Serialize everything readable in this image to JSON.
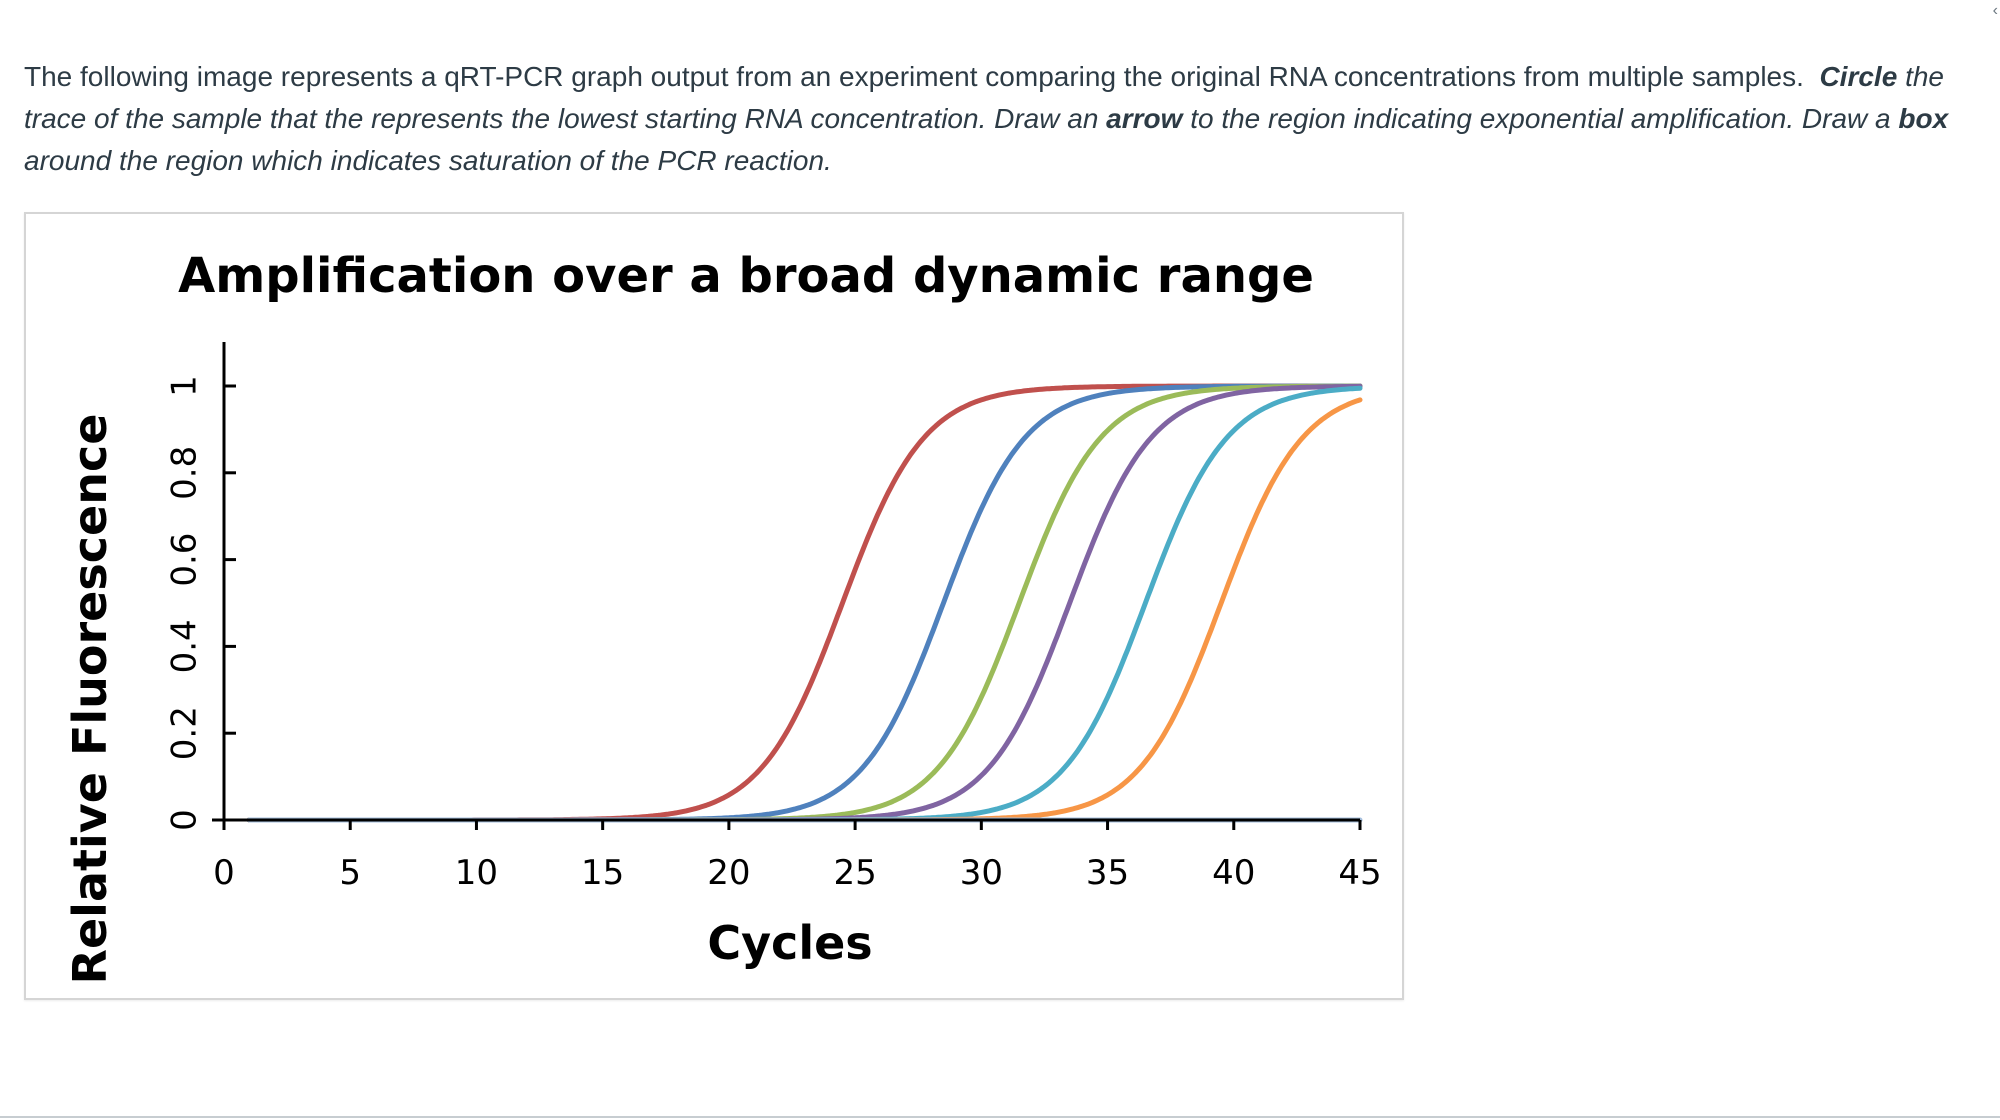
{
  "question": {
    "p1": "The following image represents a qRT-PCR graph output from an experiment comparing the original RNA concentrations from multiple samples.",
    "circle_word": "Circle",
    "p2": "the trace of the sample that the represents the lowest starting RNA concentration. Draw an",
    "arrow_word": "arrow",
    "p3": "to the region indicating exponential amplification.  Draw a",
    "box_word": "box",
    "p4": "around the region which indicates saturation of the PCR reaction."
  },
  "corner_icon": "chevron-left-icon",
  "chart_data": {
    "type": "line",
    "title": "Amplification over a broad dynamic range",
    "xlabel": "Cycles",
    "ylabel": "Relative Fluorescence",
    "xlim": [
      0,
      45
    ],
    "ylim": [
      0,
      1
    ],
    "x_ticks": [
      "0",
      "5",
      "10",
      "15",
      "20",
      "25",
      "30",
      "35",
      "40",
      "45"
    ],
    "y_ticks": [
      "0",
      "0.2",
      "0.4",
      "0.6",
      "0.8",
      "1"
    ],
    "grid": false,
    "legend": "none",
    "series": [
      {
        "color": "#c0504d",
        "midpoint_cycle": 24.5,
        "x": [
          1,
          18,
          20,
          22,
          23,
          24,
          25,
          26,
          27,
          28,
          30,
          35,
          45
        ],
        "y": [
          0,
          0.01,
          0.04,
          0.14,
          0.26,
          0.44,
          0.63,
          0.8,
          0.91,
          0.96,
          0.99,
          1,
          1
        ]
      },
      {
        "color": "#4f81bd",
        "midpoint_cycle": 28.5,
        "x": [
          1,
          22,
          24,
          26,
          27,
          28,
          29,
          30,
          31,
          32,
          34,
          38,
          45
        ],
        "y": [
          0,
          0.01,
          0.04,
          0.14,
          0.26,
          0.44,
          0.63,
          0.8,
          0.9,
          0.95,
          0.98,
          1,
          1
        ]
      },
      {
        "color": "#9bbb59",
        "midpoint_cycle": 31.5,
        "x": [
          1,
          25,
          27,
          29,
          30,
          31,
          32,
          33,
          34,
          35,
          37,
          41,
          45
        ],
        "y": [
          0,
          0.01,
          0.04,
          0.14,
          0.26,
          0.44,
          0.63,
          0.8,
          0.9,
          0.95,
          0.98,
          0.99,
          1
        ]
      },
      {
        "color": "#8064a2",
        "midpoint_cycle": 33.5,
        "x": [
          1,
          27,
          29,
          31,
          32,
          33,
          34,
          35,
          36,
          37,
          39,
          42,
          45
        ],
        "y": [
          0,
          0.01,
          0.04,
          0.14,
          0.26,
          0.44,
          0.63,
          0.8,
          0.9,
          0.95,
          0.98,
          0.99,
          1
        ]
      },
      {
        "color": "#4bacc6",
        "midpoint_cycle": 36.5,
        "x": [
          1,
          30,
          32,
          34,
          35,
          36,
          37,
          38,
          39,
          40,
          42,
          45
        ],
        "y": [
          0,
          0.01,
          0.04,
          0.14,
          0.26,
          0.44,
          0.63,
          0.8,
          0.9,
          0.95,
          0.98,
          0.99
        ]
      },
      {
        "color": "#f79646",
        "midpoint_cycle": 39.5,
        "x": [
          1,
          33,
          35,
          37,
          38,
          39,
          40,
          41,
          42,
          43,
          44,
          45
        ],
        "y": [
          0,
          0.01,
          0.04,
          0.14,
          0.26,
          0.44,
          0.63,
          0.8,
          0.89,
          0.93,
          0.95,
          0.97
        ]
      },
      {
        "color": "#a6bfdd",
        "x": [
          1,
          45
        ],
        "y": [
          0,
          0
        ]
      }
    ]
  }
}
